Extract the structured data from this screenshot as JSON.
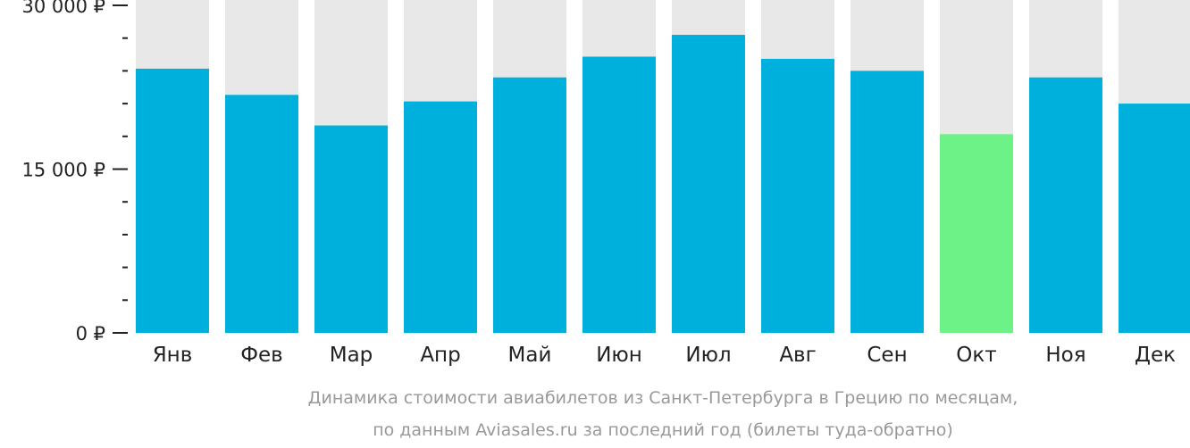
{
  "chart_data": {
    "type": "bar",
    "categories": [
      "Янв",
      "Фев",
      "Мар",
      "Апр",
      "Май",
      "Июн",
      "Июл",
      "Авг",
      "Сен",
      "Окт",
      "Ноя",
      "Дек"
    ],
    "values": [
      24200,
      21800,
      19000,
      21200,
      23400,
      25300,
      27300,
      25100,
      24000,
      18200,
      23400,
      21000
    ],
    "highlight_index": 9,
    "ylim": [
      0,
      30000
    ],
    "y_ticks": [
      {
        "value": 0,
        "label": "0 ₽"
      },
      {
        "value": 15000,
        "label": "15 000 ₽"
      },
      {
        "value": 30000,
        "label": "30 000 ₽"
      }
    ],
    "minor_tick_step": 3000,
    "caption_lines": [
      "Динамика стоимости авиабилетов из Санкт-Петербурга в Грецию по месяцам,",
      "по данным Aviasales.ru за последний год (билеты туда-обратно)"
    ],
    "colors": {
      "bar": "#00b0dc",
      "highlight": "#6cf286",
      "track": "#e8e8e8",
      "axis": "#222222",
      "caption": "#999999"
    }
  }
}
